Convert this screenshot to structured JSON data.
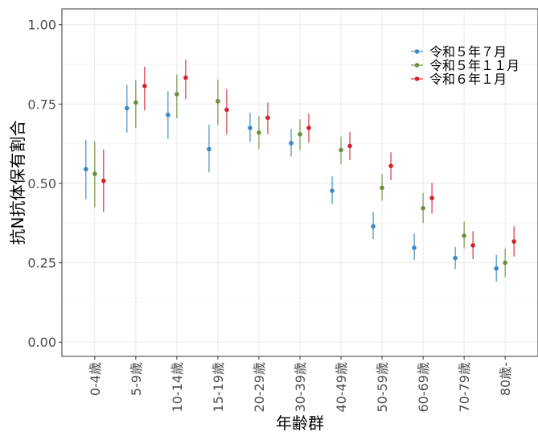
{
  "chart_data": {
    "type": "scatter",
    "subtype": "point-with-error-bars",
    "xlabel": "年齢群",
    "ylabel": "抗N抗体保有割合",
    "ylim": [
      0,
      1
    ],
    "yticks": [
      "0.00",
      "0.25",
      "0.50",
      "0.75",
      "1.00"
    ],
    "categories": [
      "0-4歳",
      "5-9歳",
      "10-14歳",
      "15-19歳",
      "20-29歳",
      "30-39歳",
      "40-49歳",
      "50-59歳",
      "60-69歳",
      "70-79歳",
      "80歳-"
    ],
    "grid": true,
    "legend_position": "top-right",
    "series": [
      {
        "name": "令和５年７月",
        "color": "#3a87c4",
        "values": [
          0.545,
          0.737,
          0.716,
          0.608,
          0.675,
          0.627,
          0.477,
          0.365,
          0.297,
          0.265,
          0.232
        ],
        "lower": [
          0.45,
          0.66,
          0.64,
          0.535,
          0.63,
          0.585,
          0.435,
          0.325,
          0.258,
          0.23,
          0.19
        ],
        "upper": [
          0.637,
          0.81,
          0.79,
          0.685,
          0.722,
          0.672,
          0.522,
          0.41,
          0.342,
          0.3,
          0.275
        ]
      },
      {
        "name": "令和５年１１月",
        "color": "#6b8e3a",
        "values": [
          0.53,
          0.755,
          0.781,
          0.759,
          0.66,
          0.655,
          0.605,
          0.486,
          0.422,
          0.335,
          0.25
        ],
        "lower": [
          0.425,
          0.675,
          0.705,
          0.685,
          0.608,
          0.605,
          0.56,
          0.445,
          0.375,
          0.295,
          0.205
        ],
        "upper": [
          0.632,
          0.825,
          0.843,
          0.827,
          0.712,
          0.702,
          0.648,
          0.53,
          0.47,
          0.38,
          0.295
        ]
      },
      {
        "name": "令和６年１月",
        "color": "#d4202a",
        "values": [
          0.508,
          0.807,
          0.833,
          0.732,
          0.707,
          0.675,
          0.618,
          0.555,
          0.454,
          0.305,
          0.317
        ],
        "lower": [
          0.41,
          0.73,
          0.765,
          0.655,
          0.655,
          0.628,
          0.573,
          0.51,
          0.405,
          0.262,
          0.27
        ],
        "upper": [
          0.607,
          0.868,
          0.89,
          0.797,
          0.755,
          0.72,
          0.662,
          0.598,
          0.502,
          0.35,
          0.365
        ]
      }
    ]
  }
}
